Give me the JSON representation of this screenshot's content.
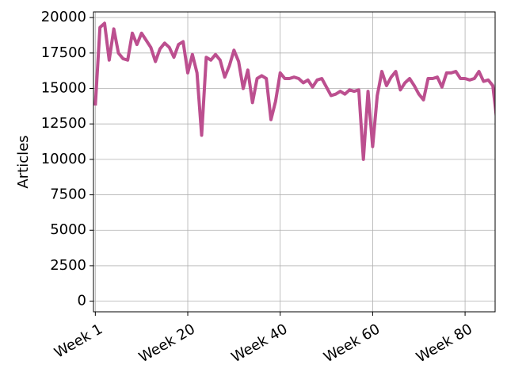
{
  "chart_data": {
    "type": "line",
    "y_label": "Articles",
    "x": [
      0,
      1,
      2,
      3,
      4,
      5,
      6,
      7,
      8,
      9,
      10,
      11,
      12,
      13,
      14,
      15,
      16,
      17,
      18,
      19,
      20,
      21,
      22,
      23,
      24,
      25,
      26,
      27,
      28,
      29,
      30,
      31,
      32,
      33,
      34,
      35,
      36,
      37,
      38,
      39,
      40,
      41,
      42,
      43,
      44,
      45,
      46,
      47,
      48,
      49,
      50,
      51,
      52,
      53,
      54,
      55,
      56,
      57,
      58,
      59,
      60,
      61,
      62,
      63,
      64,
      65,
      66,
      67,
      68,
      69,
      70,
      71,
      72,
      73,
      74,
      75,
      76,
      77,
      78,
      79,
      80,
      81,
      82,
      83,
      84,
      85,
      86,
      87
    ],
    "series": [
      {
        "name": "Articles",
        "color": "#bc4f8f",
        "values": [
          13800,
          19300,
          19600,
          17000,
          19200,
          17500,
          17100,
          17000,
          18900,
          18100,
          18900,
          18400,
          17900,
          16900,
          17800,
          18200,
          17900,
          17200,
          18100,
          18300,
          16100,
          17400,
          16100,
          11700,
          17200,
          17000,
          17400,
          17000,
          15800,
          16600,
          17700,
          16900,
          15000,
          16300,
          14000,
          15700,
          15900,
          15700,
          12800,
          14100,
          16100,
          15700,
          15700,
          15800,
          15700,
          15400,
          15600,
          15100,
          15600,
          15700,
          15100,
          14500,
          14600,
          14800,
          14600,
          14900,
          14800,
          14900,
          10000,
          14800,
          10900,
          14500,
          16200,
          15200,
          15800,
          16200,
          14900,
          15400,
          15700,
          15200,
          14600,
          14200,
          15700,
          15700,
          15800,
          15100,
          16100,
          16100,
          16200,
          15700,
          15700,
          15600,
          15700,
          16200,
          15500,
          15600,
          15200,
          12400
        ]
      }
    ],
    "xlim": [
      -0.4,
      86.5
    ],
    "xticks": [
      {
        "value": 0,
        "label": "Week 1"
      },
      {
        "value": 20,
        "label": "Week 20"
      },
      {
        "value": 40,
        "label": "Week 40"
      },
      {
        "value": 60,
        "label": "Week 60"
      },
      {
        "value": 80,
        "label": "Week 80"
      }
    ],
    "ylim": [
      -750,
      20400
    ],
    "yticks": [
      0,
      2500,
      5000,
      7500,
      10000,
      12500,
      15000,
      17500,
      20000
    ],
    "grid": true
  }
}
